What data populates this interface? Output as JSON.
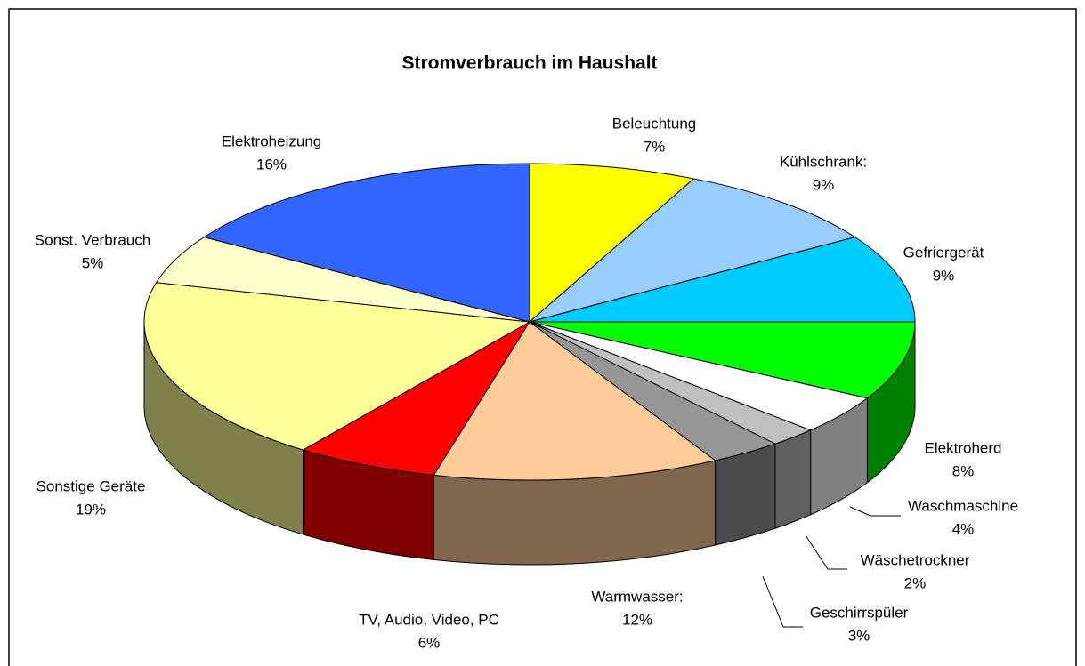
{
  "chart_data": {
    "type": "pie3d",
    "title": "Stromverbrauch im Haushalt",
    "categories": [
      "Beleuchtung",
      "Kühlschrank:",
      "Gefriergerät",
      "Elektroherd",
      "Waschmaschine",
      "Wäschetrockner",
      "Geschirrspüler",
      "Warmwasser:",
      "TV, Audio, Video, PC",
      "Sonstige Geräte",
      "Sonst. Verbrauch",
      "Elektroheizung"
    ],
    "values": [
      7,
      9,
      9,
      8,
      4,
      2,
      3,
      12,
      6,
      19,
      5,
      16
    ],
    "value_labels": [
      "7%",
      "9%",
      "9%",
      "8%",
      "4%",
      "2%",
      "3%",
      "12%",
      "6%",
      "19%",
      "5%",
      "16%"
    ],
    "colors": [
      "#ffff00",
      "#99ccff",
      "#00ccff",
      "#00ff00",
      "#ffffff",
      "#c0c0c0",
      "#969696",
      "#ffcc99",
      "#ff0000",
      "#ffff99",
      "#ffffcc",
      "#3366ff"
    ]
  }
}
